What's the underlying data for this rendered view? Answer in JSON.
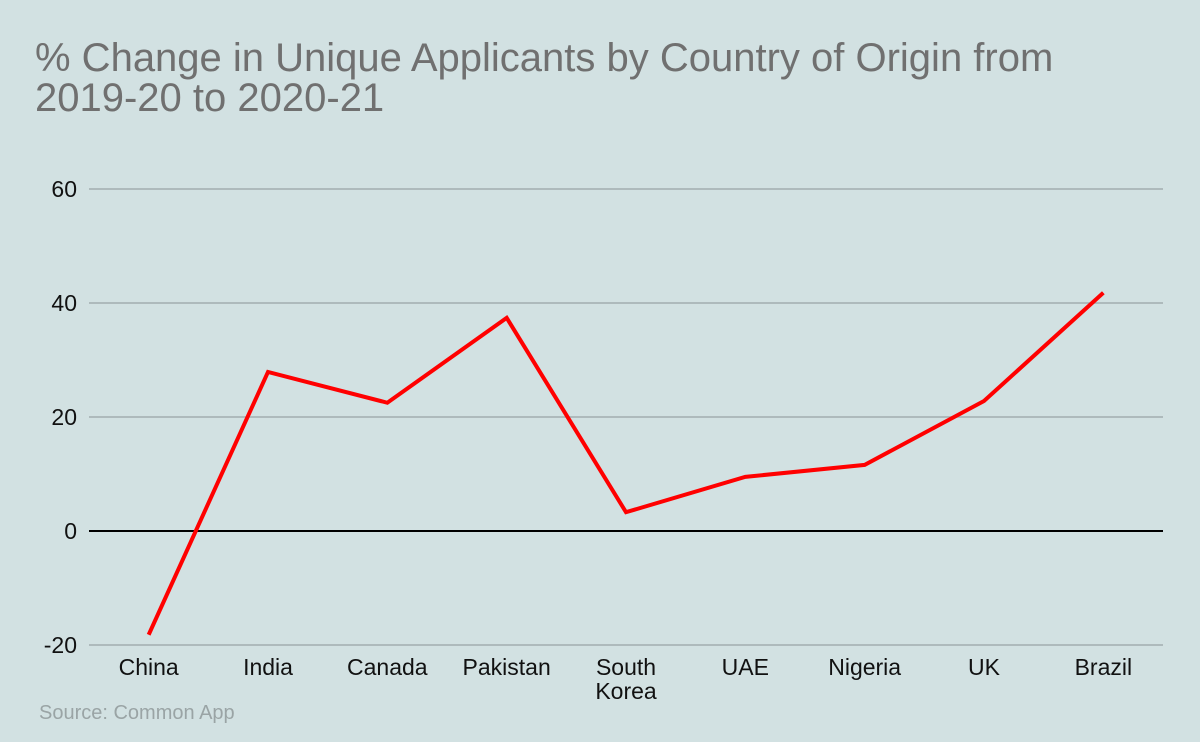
{
  "chart_data": {
    "type": "line",
    "title": "% Change in Unique Applicants by Country of Origin from 2019-20 to 2020-21",
    "categories": [
      "China",
      "India",
      "Canada",
      "Pakistan",
      "South Korea",
      "UAE",
      "Nigeria",
      "UK",
      "Brazil"
    ],
    "series": [
      {
        "values": [
          -18.2,
          27.9,
          22.5,
          37.4,
          3.3,
          9.5,
          11.6,
          22.8,
          41.8
        ],
        "color": "#ff0000"
      }
    ],
    "yticks": [
      "-20",
      "0",
      "20",
      "40",
      "60"
    ],
    "ylim": [
      -20,
      60
    ],
    "xlabel": "",
    "ylabel": "",
    "grid": true,
    "source": "Source: Common App",
    "colors": {
      "background": "#d2e1e2",
      "grid": "#a2aeaf",
      "zero_line": "#000000",
      "line": "#ff0000"
    }
  }
}
